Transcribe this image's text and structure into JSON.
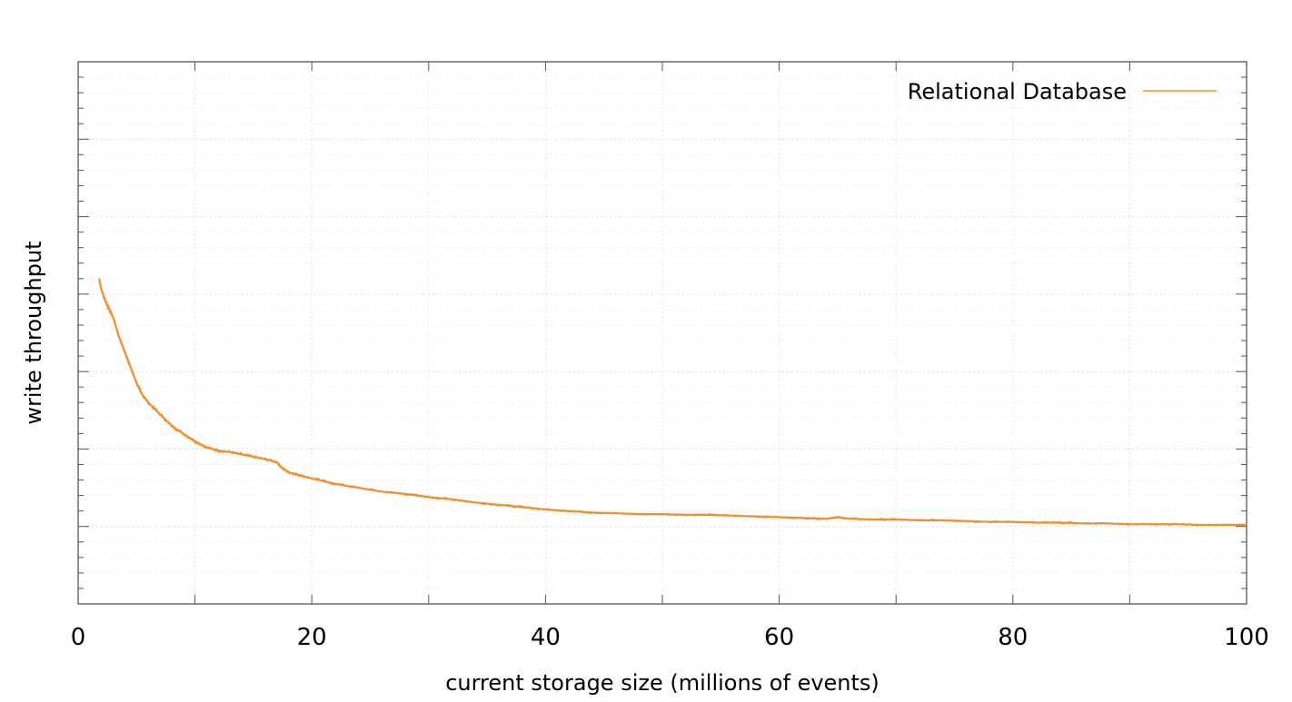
{
  "chart_data": {
    "type": "line",
    "title": "",
    "xlabel": "current storage size (millions of events)",
    "ylabel": "write throughput",
    "xlim": [
      0,
      100
    ],
    "ylim": [
      0,
      7
    ],
    "x_ticks": [
      "0",
      "20",
      "40",
      "60",
      "80",
      "100"
    ],
    "y_ticks_labeled": false,
    "grid": true,
    "legend": "top-right",
    "series": [
      {
        "name": "Relational Database",
        "color": "#f28e2b",
        "x": [
          1.8,
          2.0,
          2.5,
          3.0,
          3.5,
          4.0,
          4.5,
          5.0,
          5.5,
          6.0,
          7.0,
          8.0,
          9.0,
          10.0,
          11.0,
          12.0,
          13.0,
          14.0,
          15.0,
          16.0,
          17.0,
          17.5,
          18.0,
          18.5,
          19.0,
          20.0,
          22.0,
          24.0,
          26.0,
          28.0,
          30.0,
          32.0,
          34.0,
          36.0,
          38.0,
          40.0,
          42.0,
          44.0,
          46.0,
          48.0,
          50.0,
          52.0,
          54.0,
          56.0,
          58.0,
          60.0,
          62.0,
          64.0,
          65.0,
          66.0,
          68.0,
          70.0,
          72.0,
          74.0,
          76.0,
          78.0,
          80.0,
          82.0,
          84.0,
          86.0,
          88.0,
          90.0,
          92.0,
          94.0,
          96.0,
          98.0,
          100.0
        ],
        "y": [
          4.2,
          4.05,
          3.85,
          3.7,
          3.45,
          3.25,
          3.05,
          2.85,
          2.7,
          2.6,
          2.45,
          2.3,
          2.2,
          2.1,
          2.02,
          1.98,
          1.96,
          1.93,
          1.9,
          1.87,
          1.83,
          1.75,
          1.7,
          1.68,
          1.66,
          1.62,
          1.55,
          1.5,
          1.45,
          1.42,
          1.38,
          1.35,
          1.31,
          1.28,
          1.25,
          1.22,
          1.2,
          1.18,
          1.17,
          1.16,
          1.16,
          1.15,
          1.15,
          1.14,
          1.13,
          1.12,
          1.11,
          1.1,
          1.12,
          1.1,
          1.09,
          1.09,
          1.08,
          1.08,
          1.07,
          1.06,
          1.06,
          1.05,
          1.05,
          1.04,
          1.04,
          1.03,
          1.03,
          1.03,
          1.02,
          1.02,
          1.02
        ]
      }
    ]
  }
}
